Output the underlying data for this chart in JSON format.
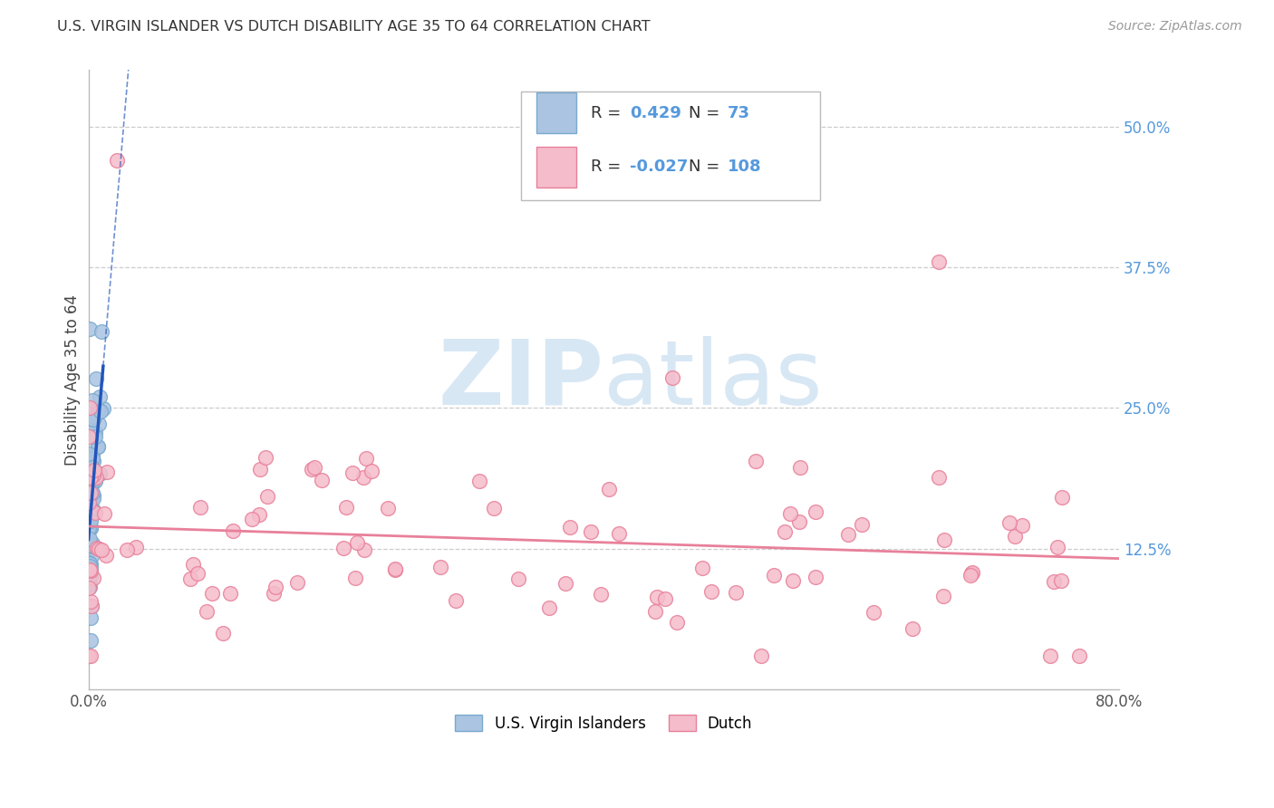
{
  "title": "U.S. VIRGIN ISLANDER VS DUTCH DISABILITY AGE 35 TO 64 CORRELATION CHART",
  "source": "Source: ZipAtlas.com",
  "ylabel": "Disability Age 35 to 64",
  "xlim": [
    0.0,
    0.8
  ],
  "ylim": [
    0.0,
    0.55
  ],
  "xtick_positions": [
    0.0,
    0.1,
    0.2,
    0.3,
    0.4,
    0.5,
    0.6,
    0.7,
    0.8
  ],
  "xticklabels": [
    "0.0%",
    "",
    "",
    "",
    "",
    "",
    "",
    "",
    "80.0%"
  ],
  "ytick_right_vals": [
    0.125,
    0.25,
    0.375,
    0.5
  ],
  "ytick_right_labels": [
    "12.5%",
    "25.0%",
    "37.5%",
    "50.0%"
  ],
  "blue_color": "#aac4e2",
  "blue_edge_color": "#7aaace",
  "pink_color": "#f5bccb",
  "pink_edge_color": "#e8809a",
  "blue_line_color": "#2255bb",
  "pink_line_color": "#e8809a",
  "legend_blue_label": "U.S. Virgin Islanders",
  "legend_pink_label": "Dutch",
  "R_blue": 0.429,
  "N_blue": 73,
  "R_pink": -0.027,
  "N_pink": 108,
  "background_color": "#ffffff",
  "grid_color": "#cccccc",
  "right_label_color": "#5599dd",
  "title_color": "#333333",
  "source_color": "#999999",
  "watermark_color": "#c8ddf0"
}
